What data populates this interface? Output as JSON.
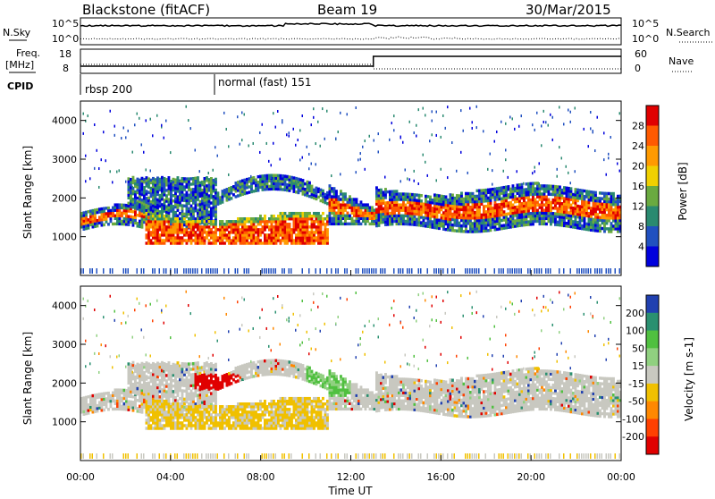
{
  "header": {
    "station": "Blackstone (fitACF)",
    "beam": "Beam 19",
    "date": "30/Mar/2015"
  },
  "top_panels": {
    "nsky_label": "N.Sky",
    "nsearch_label": "N.Search",
    "freq_label_top": "Freq.",
    "freq_label_unit": "[MHz]",
    "nave_label": "Nave",
    "cpid_label": "CPID",
    "left_ticks_noise": [
      "10^5",
      "10^0"
    ],
    "right_ticks_noise": [
      "10^5",
      "10^0"
    ],
    "left_ticks_freq": [
      "18",
      "8"
    ],
    "right_ticks_nave": [
      "60",
      "0"
    ],
    "cpid_segments": [
      {
        "label": "rbsp 200",
        "start_hour": 0
      },
      {
        "label": "normal (fast) 151",
        "start_hour": 6
      }
    ]
  },
  "chart_data": [
    {
      "type": "heatmap",
      "name": "power",
      "ylabel": "Slant Range [km]",
      "ylim": [
        0,
        4500
      ],
      "yticks": [
        1000,
        2000,
        3000,
        4000
      ],
      "xlim": [
        0,
        24
      ],
      "colorbar": {
        "label": "Power [dB]",
        "ticks": [
          "28",
          "24",
          "20",
          "16",
          "12",
          "8",
          "4"
        ],
        "colors": [
          "#e00000",
          "#ff5a00",
          "#ff9a00",
          "#f0d000",
          "#6aaa40",
          "#2a8a70",
          "#2050c0",
          "#0000dd"
        ]
      }
    },
    {
      "type": "heatmap",
      "name": "velocity",
      "ylabel": "Slant Range [km]",
      "ylim": [
        0,
        4500
      ],
      "yticks": [
        1000,
        2000,
        3000,
        4000
      ],
      "xlim": [
        0,
        24
      ],
      "xlabel": "Time UT",
      "xticks": [
        "00:00",
        "04:00",
        "08:00",
        "12:00",
        "16:00",
        "20:00",
        "00:00"
      ],
      "colorbar": {
        "label": "Velocity [m s-1]",
        "ticks": [
          "200",
          "100",
          "50",
          "15",
          "-15",
          "-50",
          "-100",
          "-200"
        ],
        "colors": [
          "#2040b0",
          "#2a9070",
          "#50c040",
          "#90d080",
          "#c8c8c0",
          "#f0c000",
          "#ff8800",
          "#ff4000",
          "#e00000"
        ]
      }
    }
  ]
}
